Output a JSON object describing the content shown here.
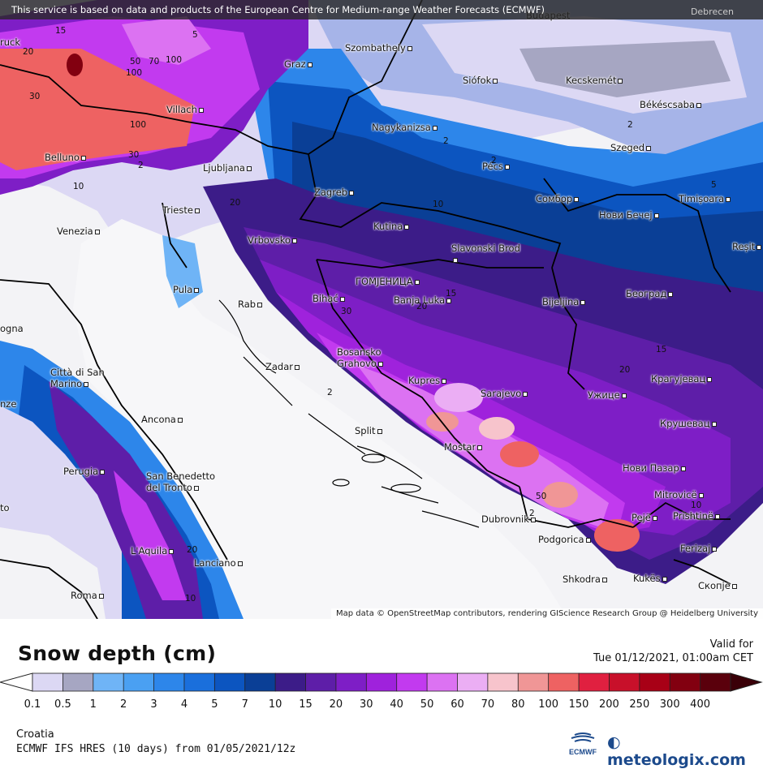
{
  "banner": {
    "text": "This service is based on data and products of the European Centre for Medium-range Weather Forecasts (ECMWF)",
    "corner_city": "Debrecen"
  },
  "attribution": "Map data © OpenStreetMap contributors, rendering GIScience Research Group @ Heidelberg University",
  "cities": [
    {
      "name": "Szombathely",
      "dot": true
    },
    {
      "name": "Budapest",
      "dot": false
    },
    {
      "name": "Graz",
      "dot": true
    },
    {
      "name": "Siófok",
      "dot": true
    },
    {
      "name": "Kecskemét",
      "dot": true
    },
    {
      "name": "Békéscsaba",
      "dot": true
    },
    {
      "name": "Villach",
      "dot": true
    },
    {
      "name": "Nagykanizsa",
      "dot": true
    },
    {
      "name": "Szeged",
      "dot": true
    },
    {
      "name": "Belluno",
      "dot": true
    },
    {
      "name": "Ljubljana",
      "dot": true
    },
    {
      "name": "Pécs",
      "dot": true
    },
    {
      "name": "Zagreb",
      "dot": true
    },
    {
      "name": "Сомбор",
      "dot": true
    },
    {
      "name": "Timișoara",
      "dot": true
    },
    {
      "name": "Trieste",
      "dot": true
    },
    {
      "name": "Нови Бечеј",
      "dot": true
    },
    {
      "name": "Venezia",
      "dot": true
    },
    {
      "name": "Kutina",
      "dot": true
    },
    {
      "name": "Vrbovsko",
      "dot": true
    },
    {
      "name": "Slavonski Brod",
      "dot": true
    },
    {
      "name": "Reșit",
      "dot": true
    },
    {
      "name": "ГОМЈЕНИЦА",
      "dot": true
    },
    {
      "name": "Pula",
      "dot": true
    },
    {
      "name": "Bihać",
      "dot": true
    },
    {
      "name": "Banja Luka",
      "dot": true
    },
    {
      "name": "Bijeljina",
      "dot": true
    },
    {
      "name": "Београд",
      "dot": true
    },
    {
      "name": "Rab",
      "dot": true
    },
    {
      "name": "ogna",
      "dot": false
    },
    {
      "name": "Bosansko Grahovo",
      "dot": true
    },
    {
      "name": "Zadar",
      "dot": true
    },
    {
      "name": "Città di San Marino",
      "dot": true
    },
    {
      "name": "Kupres",
      "dot": true
    },
    {
      "name": "Sarajevo",
      "dot": true
    },
    {
      "name": "Ужице",
      "dot": true
    },
    {
      "name": "Крагујевац",
      "dot": true
    },
    {
      "name": "Ancona",
      "dot": true
    },
    {
      "name": "Split",
      "dot": true
    },
    {
      "name": "Крушевац",
      "dot": true
    },
    {
      "name": "Mostar",
      "dot": true
    },
    {
      "name": "Perugia",
      "dot": true
    },
    {
      "name": "San Benedetto del Tronto",
      "dot": true
    },
    {
      "name": "Нови Пазар",
      "dot": true
    },
    {
      "name": "Mitrovicë",
      "dot": true
    },
    {
      "name": "Dubrovnik",
      "dot": true
    },
    {
      "name": "Pejë",
      "dot": true
    },
    {
      "name": "Prishtinë",
      "dot": true
    },
    {
      "name": "Podgorica",
      "dot": true
    },
    {
      "name": "L'Aquila",
      "dot": true
    },
    {
      "name": "Ferizaj",
      "dot": true
    },
    {
      "name": "Lanciano",
      "dot": true
    },
    {
      "name": "Shkodra",
      "dot": true
    },
    {
      "name": "Kukës",
      "dot": true
    },
    {
      "name": "Скопје",
      "dot": true
    },
    {
      "name": "Roma",
      "dot": true
    },
    {
      "name": "nze",
      "dot": false
    },
    {
      "name": "ruck",
      "dot": false
    },
    {
      "name": "to",
      "dot": false
    }
  ],
  "contour_labels": [
    "15",
    "20",
    "5",
    "50",
    "70",
    "100",
    "30",
    "100",
    "100",
    "30",
    "2",
    "10",
    "20",
    "2",
    "2",
    "10",
    "2",
    "15",
    "20",
    "30",
    "2",
    "15",
    "20",
    "10",
    "50",
    "20",
    "10",
    "2",
    "5"
  ],
  "legend": {
    "title": "Snow depth (cm)",
    "valid_label": "Valid for",
    "valid_date": "Tue 01/12/2021, 01:00am CET",
    "ticks": [
      "0.1",
      "0.5",
      "1",
      "2",
      "3",
      "4",
      "5",
      "7",
      "10",
      "15",
      "20",
      "30",
      "40",
      "50",
      "60",
      "70",
      "80",
      "100",
      "150",
      "200",
      "250",
      "300",
      "400"
    ],
    "colors": [
      "#dcd8f4",
      "#a6a6c2",
      "#6fb4f6",
      "#4aa0f2",
      "#2d86ea",
      "#1a6fdc",
      "#0c55c0",
      "#0a3f96",
      "#3c1c88",
      "#5e1ea8",
      "#7e1ec6",
      "#9f22dc",
      "#c23aef",
      "#dc72f2",
      "#ebaef4",
      "#f7c4cc",
      "#f09696",
      "#ee6262",
      "#e02040",
      "#c8102a",
      "#a80016",
      "#820010",
      "#5a000c"
    ],
    "region": "Croatia",
    "model": "ECMWF IFS HRES (10 days) from 01/05/2021/12z",
    "ecmwf_text": "ECMWF",
    "brand": "meteologix.com"
  }
}
